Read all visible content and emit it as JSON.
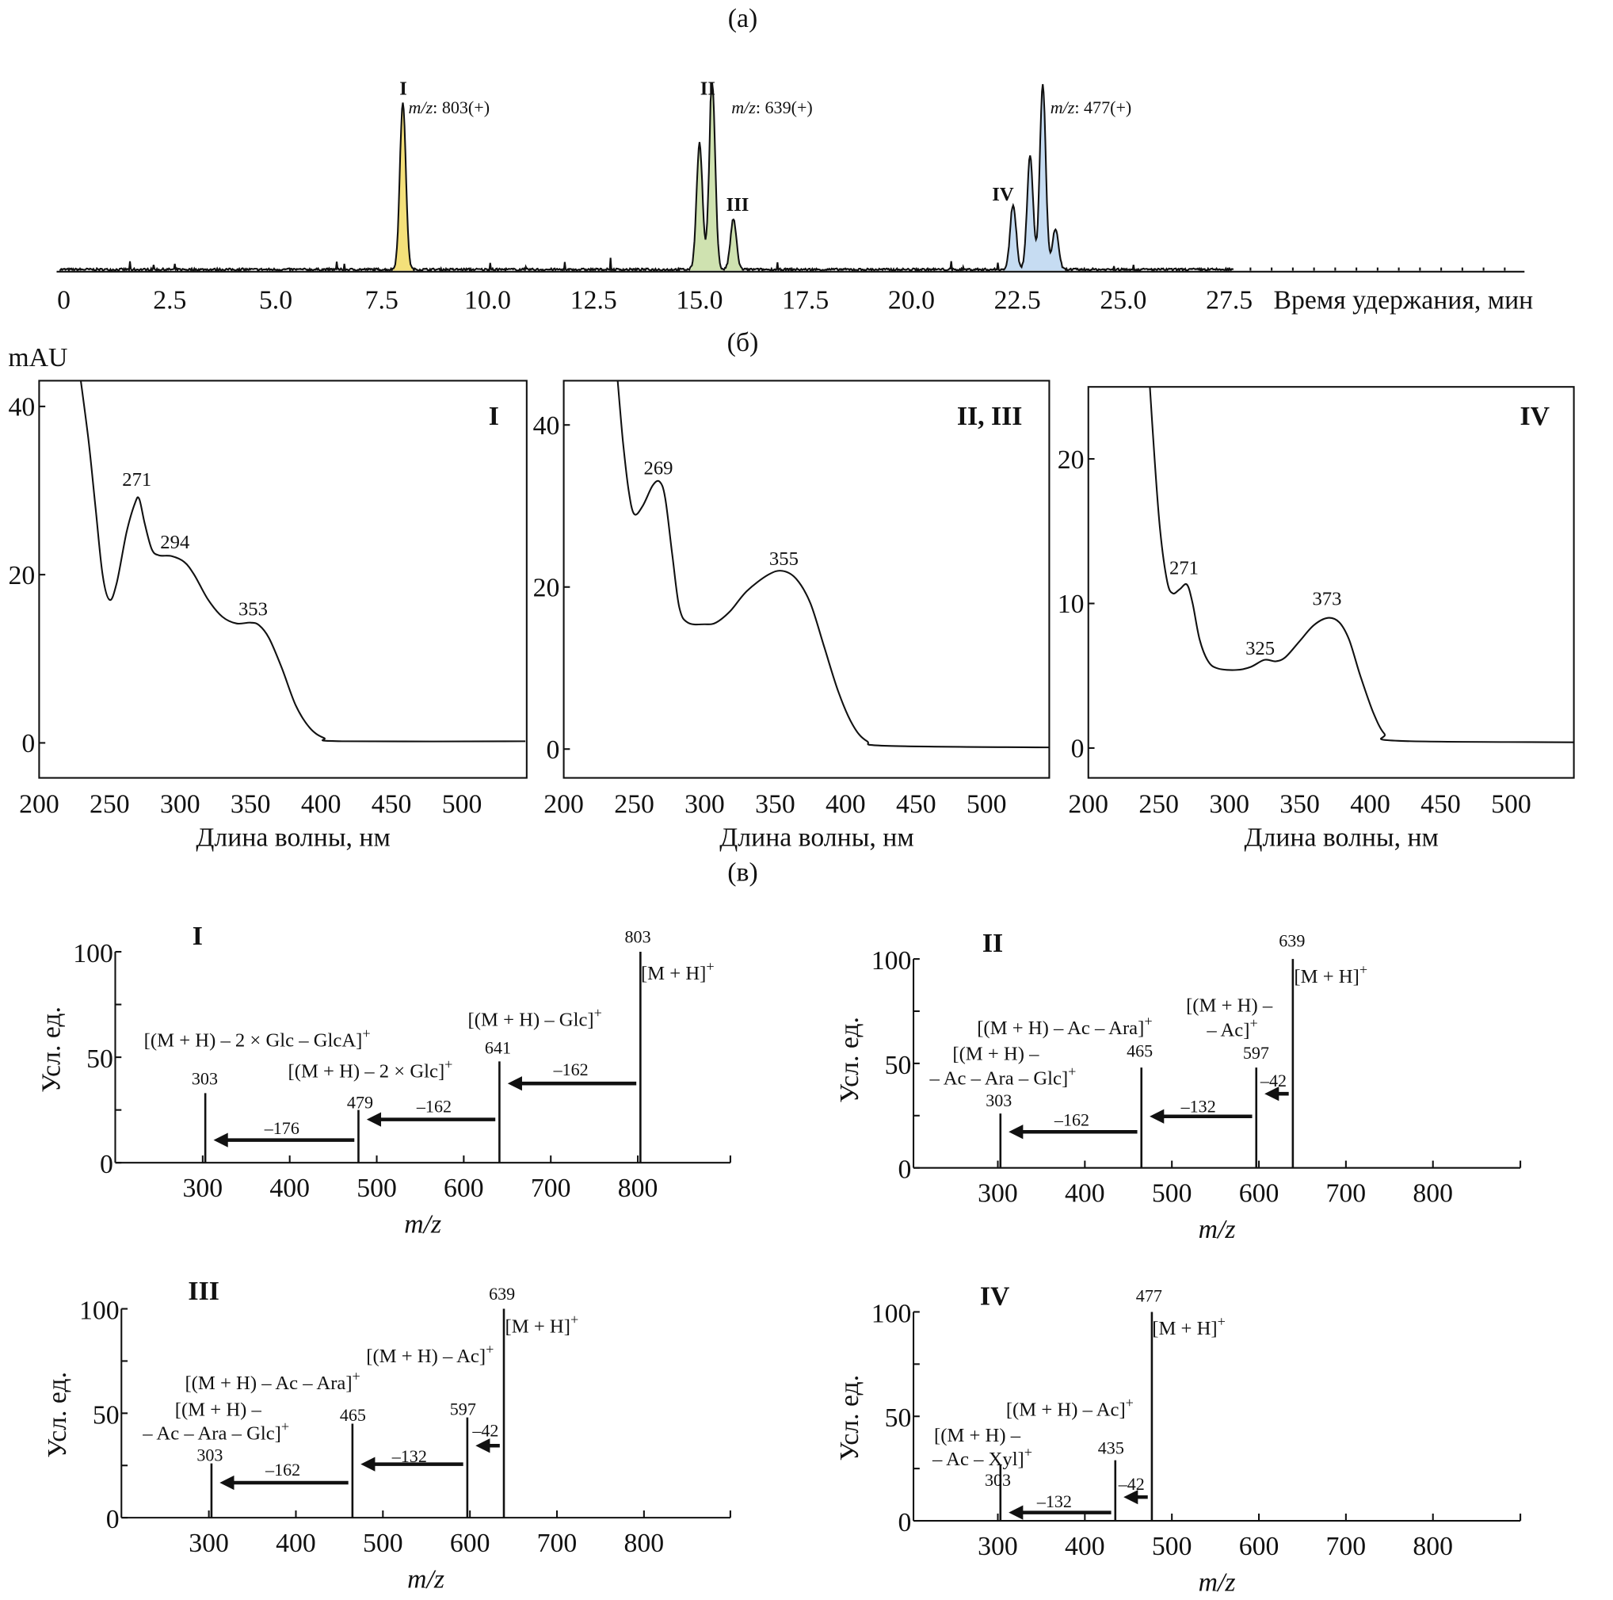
{
  "panel_titles": {
    "a": "(а)",
    "b": "(б)",
    "c": "(в)"
  },
  "mau_label": "mAU",
  "colors": {
    "peak_I": "#f4e07a",
    "peak_II_III": "#cfe2b0",
    "peak_IV": "#c6dcf2",
    "line": "#111111"
  },
  "chart_data": [
    {
      "id": "chromatogram",
      "type": "line",
      "title": "(а)",
      "xlabel": "Время удержания, мин",
      "ylabel": "",
      "xlim": [
        0,
        34.6
      ],
      "xticks": [
        "0",
        "2.5",
        "5.0",
        "7.5",
        "10.0",
        "12.5",
        "15.0",
        "17.5",
        "20.0",
        "22.5",
        "25.0",
        "27.5"
      ],
      "units": "relative intensity",
      "peaks": [
        {
          "t": 8.0,
          "intensity": 0.9,
          "group": "I"
        },
        {
          "t": 15.0,
          "intensity": 0.68,
          "group": "II"
        },
        {
          "t": 15.3,
          "intensity": 1.0,
          "group": "II"
        },
        {
          "t": 15.8,
          "intensity": 0.27,
          "group": "III"
        },
        {
          "t": 22.4,
          "intensity": 0.35,
          "group": "IV"
        },
        {
          "t": 22.8,
          "intensity": 0.61,
          "group": "IV"
        },
        {
          "t": 23.1,
          "intensity": 0.99,
          "group": "IV"
        },
        {
          "t": 23.4,
          "intensity": 0.22,
          "group": "IV"
        }
      ],
      "annotations": [
        {
          "label": "I",
          "mz_prefix": "m/z",
          "mz": ": 803(+)"
        },
        {
          "label": "II",
          "mz_prefix": "m/z",
          "mz": ": 639(+)"
        },
        {
          "label": "III"
        },
        {
          "label": "IV",
          "mz_prefix": "m/z",
          "mz": ": 477(+)"
        }
      ]
    },
    {
      "id": "uv-I",
      "type": "line",
      "title": "I",
      "xlabel": "Длина волны, нм",
      "ylabel": "mAU",
      "xlim": [
        200,
        545
      ],
      "ylim": [
        0,
        40
      ],
      "xticks": [
        "200",
        "250",
        "300",
        "350",
        "400",
        "450",
        "500"
      ],
      "yticks": [
        "0",
        "20",
        "40"
      ],
      "peak_labels": [
        "271",
        "294",
        "353"
      ],
      "x": [
        228,
        235,
        240,
        245,
        250,
        255,
        262,
        268,
        271,
        275,
        280,
        285,
        294,
        303,
        310,
        320,
        330,
        340,
        350,
        356,
        363,
        372,
        382,
        392,
        402,
        415,
        545
      ],
      "y": [
        45,
        36,
        28,
        20,
        17,
        19,
        25,
        28.5,
        29,
        26,
        23,
        22.3,
        22.2,
        21.5,
        20,
        17,
        15,
        14.2,
        14.3,
        14,
        12.5,
        9,
        4.5,
        1.8,
        0.6,
        0.2,
        0.2
      ]
    },
    {
      "id": "uv-II-III",
      "type": "line",
      "title": "II, III",
      "xlabel": "Длина волны, нм",
      "ylabel": "",
      "xlim": [
        200,
        545
      ],
      "ylim": [
        0,
        40
      ],
      "xticks": [
        "200",
        "250",
        "300",
        "350",
        "400",
        "450",
        "500"
      ],
      "yticks": [
        "0",
        "20",
        "40"
      ],
      "peak_labels": [
        "269",
        "355"
      ],
      "x": [
        238,
        242,
        246,
        250,
        256,
        263,
        268,
        272,
        277,
        282,
        288,
        300,
        308,
        318,
        330,
        345,
        355,
        365,
        375,
        385,
        395,
        405,
        415,
        430,
        545
      ],
      "y": [
        46,
        38,
        32,
        29,
        30,
        32.5,
        33,
        31,
        24,
        17.5,
        15.6,
        15.4,
        15.6,
        17,
        19.5,
        21.5,
        22,
        21,
        18,
        12.5,
        7,
        3,
        1,
        0.4,
        0.2
      ]
    },
    {
      "id": "uv-IV",
      "type": "line",
      "title": "IV",
      "xlabel": "Длина волны, нм",
      "ylabel": "",
      "xlim": [
        200,
        545
      ],
      "ylim": [
        0,
        20
      ],
      "xticks": [
        "200",
        "250",
        "300",
        "350",
        "400",
        "450",
        "500"
      ],
      "yticks": [
        "0",
        "10",
        "20"
      ],
      "peak_labels": [
        "271",
        "325",
        "373"
      ],
      "x": [
        243,
        247,
        251,
        256,
        260,
        265,
        270,
        274,
        279,
        285,
        292,
        305,
        315,
        325,
        333,
        340,
        350,
        360,
        370,
        378,
        385,
        393,
        402,
        410,
        420,
        545
      ],
      "y": [
        26,
        20,
        15,
        11.5,
        10.7,
        11,
        11.3,
        10,
        7.5,
        6,
        5.5,
        5.4,
        5.6,
        6.1,
        6,
        6.3,
        7.4,
        8.5,
        9,
        8.7,
        7.5,
        5,
        2.5,
        1,
        0.5,
        0.4
      ]
    },
    {
      "id": "ms-I",
      "type": "bar",
      "title": "I",
      "xlabel": "m/z",
      "ylabel": "Усл. ед.",
      "xticks": [
        "300",
        "400",
        "500",
        "600",
        "700",
        "800"
      ],
      "yticks": [
        "0",
        "50",
        "100"
      ],
      "ylim": [
        0,
        100
      ],
      "peaks": [
        {
          "mz": 303,
          "label": "303",
          "intensity": 33
        },
        {
          "mz": 479,
          "label": "479",
          "intensity": 25
        },
        {
          "mz": 641,
          "label": "641",
          "intensity": 48
        },
        {
          "mz": 803,
          "label": "803",
          "intensity": 100
        }
      ],
      "annotations": [
        {
          "text": "[M + H]",
          "sup": "+"
        },
        {
          "text": "[(M + H) – Glc]",
          "sup": "+"
        },
        {
          "text": "[(M + H) – 2 × Glc – GlcA]",
          "sup": "+"
        },
        {
          "text": "[(M + H) – 2 × Glc]",
          "sup": "+"
        }
      ],
      "losses": [
        {
          "from": 803,
          "to": 641,
          "label": "–162"
        },
        {
          "from": 641,
          "to": 479,
          "label": "–162"
        },
        {
          "from": 479,
          "to": 303,
          "label": "–176"
        }
      ]
    },
    {
      "id": "ms-II",
      "type": "bar",
      "title": "II",
      "xlabel": "m/z",
      "ylabel": "Усл. ед.",
      "xticks": [
        "300",
        "400",
        "500",
        "600",
        "700",
        "800"
      ],
      "yticks": [
        "0",
        "50",
        "100"
      ],
      "ylim": [
        0,
        100
      ],
      "peaks": [
        {
          "mz": 303,
          "label": "303",
          "intensity": 26
        },
        {
          "mz": 465,
          "label": "465",
          "intensity": 48
        },
        {
          "mz": 597,
          "label": "597",
          "intensity": 48
        },
        {
          "mz": 639,
          "label": "639",
          "intensity": 100
        }
      ],
      "annotations": [
        {
          "text": "[M + H]",
          "sup": "+"
        },
        {
          "text": "[(M + H) –",
          "sup": ""
        },
        {
          "text": "– Ac]",
          "sup": "+"
        },
        {
          "text": "[(M + H) – Ac – Ara]",
          "sup": "+"
        },
        {
          "text": "[(M + H) –",
          "sup": ""
        },
        {
          "text": "– Ac – Ara – Glc]",
          "sup": "+"
        }
      ],
      "losses": [
        {
          "from": 639,
          "to": 597,
          "label": "–42"
        },
        {
          "from": 597,
          "to": 465,
          "label": "–132"
        },
        {
          "from": 465,
          "to": 303,
          "label": "–162"
        }
      ]
    },
    {
      "id": "ms-III",
      "type": "bar",
      "title": "III",
      "xlabel": "m/z",
      "ylabel": "Усл. ед.",
      "xticks": [
        "300",
        "400",
        "500",
        "600",
        "700",
        "800"
      ],
      "yticks": [
        "0",
        "50",
        "100"
      ],
      "ylim": [
        0,
        100
      ],
      "peaks": [
        {
          "mz": 303,
          "label": "303",
          "intensity": 26
        },
        {
          "mz": 465,
          "label": "465",
          "intensity": 45
        },
        {
          "mz": 597,
          "label": "597",
          "intensity": 48
        },
        {
          "mz": 639,
          "label": "639",
          "intensity": 100
        }
      ],
      "annotations": [
        {
          "text": "[M + H]",
          "sup": "+"
        },
        {
          "text": "[(M + H) – Ac]",
          "sup": "+"
        },
        {
          "text": "[(M + H) – Ac – Ara]",
          "sup": "+"
        },
        {
          "text": "[(M + H) –",
          "sup": ""
        },
        {
          "text": "– Ac – Ara – Glc]",
          "sup": "+"
        }
      ],
      "losses": [
        {
          "from": 639,
          "to": 597,
          "label": "–42"
        },
        {
          "from": 597,
          "to": 465,
          "label": "–132"
        },
        {
          "from": 465,
          "to": 303,
          "label": "–162"
        }
      ]
    },
    {
      "id": "ms-IV",
      "type": "bar",
      "title": "IV",
      "xlabel": "m/z",
      "ylabel": "Усл. ед.",
      "xticks": [
        "300",
        "400",
        "500",
        "600",
        "700",
        "800"
      ],
      "yticks": [
        "0",
        "50",
        "100"
      ],
      "ylim": [
        0,
        100
      ],
      "peaks": [
        {
          "mz": 303,
          "label": "303",
          "intensity": 27
        },
        {
          "mz": 435,
          "label": "435",
          "intensity": 29
        },
        {
          "mz": 477,
          "label": "477",
          "intensity": 100
        }
      ],
      "annotations": [
        {
          "text": "[M + H]",
          "sup": "+"
        },
        {
          "text": "[(M + H) – Ac]",
          "sup": "+"
        },
        {
          "text": "[(M + H) –",
          "sup": ""
        },
        {
          "text": "– Ac – Xyl]",
          "sup": "+"
        }
      ],
      "losses": [
        {
          "from": 477,
          "to": 435,
          "label": "–42"
        },
        {
          "from": 435,
          "to": 303,
          "label": "–132"
        }
      ]
    }
  ]
}
